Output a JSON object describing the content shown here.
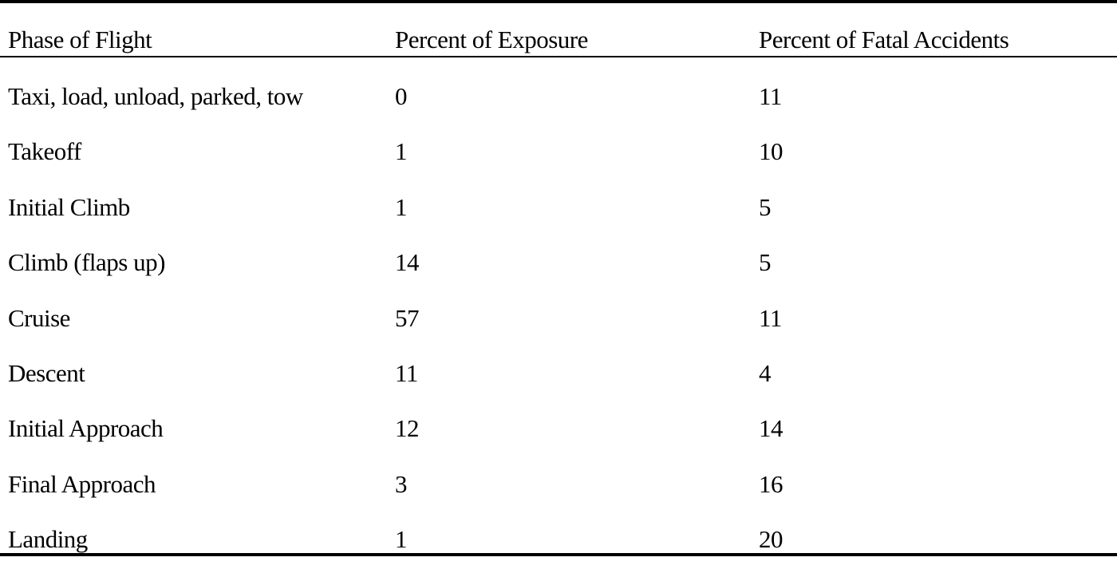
{
  "chart_data": {
    "type": "table",
    "columns": [
      "Phase of Flight",
      "Percent of Exposure",
      "Percent of Fatal Accidents"
    ],
    "rows": [
      [
        "Taxi, load, unload, parked, tow",
        "0",
        "11"
      ],
      [
        "Takeoff",
        "1",
        "10"
      ],
      [
        "Initial Climb",
        "1",
        "5"
      ],
      [
        "Climb (flaps up)",
        "14",
        "5"
      ],
      [
        "Cruise",
        "57",
        "11"
      ],
      [
        "Descent",
        "11",
        "4"
      ],
      [
        "Initial Approach",
        "12",
        "14"
      ],
      [
        "Final Approach",
        "3",
        "16"
      ],
      [
        "Landing",
        "1",
        "20"
      ]
    ]
  }
}
